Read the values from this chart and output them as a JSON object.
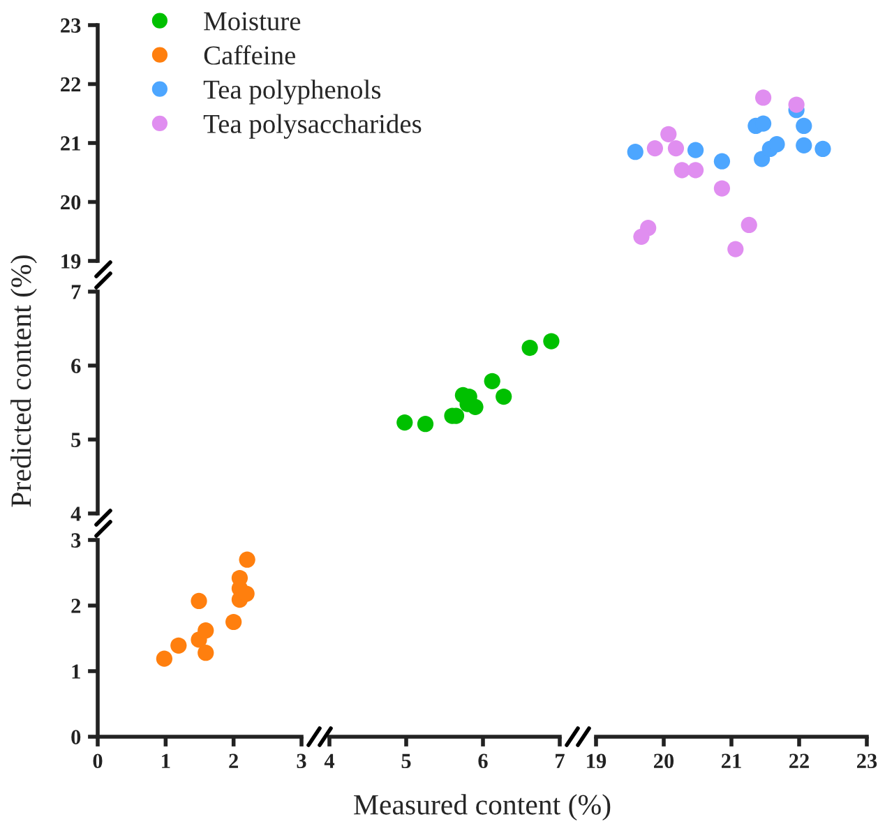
{
  "chart_data": [
    {
      "type": "scatter",
      "xlim": [
        0,
        3
      ],
      "ylim": [
        19,
        23
      ],
      "yticks": [
        19,
        20,
        21,
        22,
        23
      ],
      "tick_labels": "y"
    },
    {
      "type": "scatter",
      "xlim": [
        4,
        7
      ],
      "ylim": [
        19,
        23
      ],
      "tick_labels": false
    },
    {
      "type": "scatter",
      "xlim": [
        19,
        23
      ],
      "ylim": [
        19,
        23
      ],
      "tick_labels": false,
      "marker": "circle",
      "legend": "top left",
      "series": [
        {
          "name": "Tea polyphenols",
          "color": "#4da6ff",
          "x": [
            19.58,
            20.47,
            20.86,
            21.36,
            21.47,
            21.45,
            21.57,
            21.67,
            21.96,
            22.07,
            22.07,
            22.35
          ],
          "values": [
            20.85,
            20.88,
            20.69,
            21.29,
            21.33,
            20.73,
            20.9,
            20.98,
            21.56,
            21.29,
            20.96,
            20.9
          ]
        },
        {
          "name": "Tea polysaccharides",
          "color": "#e08ef0",
          "x": [
            21.47,
            21.96,
            20.07,
            19.87,
            20.18,
            20.27,
            20.47,
            20.86,
            19.77,
            19.67,
            21.26,
            21.06
          ],
          "values": [
            21.77,
            21.65,
            21.15,
            20.91,
            20.91,
            20.54,
            20.54,
            20.23,
            19.56,
            19.41,
            19.61,
            19.2
          ]
        }
      ]
    },
    {
      "type": "scatter",
      "ylabel": "Predicted content (%)",
      "xlim": [
        0,
        3
      ],
      "ylim": [
        4,
        7
      ],
      "yticks": [
        4,
        5,
        6,
        7
      ],
      "tick_labels": "y"
    },
    {
      "type": "scatter",
      "xlim": [
        4,
        7
      ],
      "ylim": [
        4,
        7
      ],
      "tick_labels": false,
      "marker": "circle",
      "legend": "top left",
      "series": [
        {
          "name": "Moisture",
          "color": "#00c000",
          "x": [
            4.98,
            5.25,
            5.6,
            5.65,
            5.74,
            5.82,
            5.8,
            5.9,
            6.12,
            6.27,
            6.61,
            6.89
          ],
          "values": [
            5.23,
            5.21,
            5.32,
            5.32,
            5.6,
            5.58,
            5.48,
            5.44,
            5.79,
            5.58,
            6.24,
            6.33
          ]
        }
      ]
    },
    {
      "type": "scatter",
      "xlim": [
        19,
        23
      ],
      "ylim": [
        4,
        7
      ],
      "tick_labels": false
    },
    {
      "type": "scatter",
      "xlim": [
        0,
        3
      ],
      "ylim": [
        0,
        3
      ],
      "xticks": [
        0,
        1,
        2,
        3
      ],
      "yticks": [
        0,
        1,
        2,
        3
      ],
      "marker": "circle",
      "legend": "top right",
      "series": [
        {
          "name": "Caffeine",
          "color": "#ff7f0e",
          "x": [
            0.98,
            1.19,
            1.49,
            1.49,
            1.59,
            1.59,
            2.0,
            2.09,
            2.09,
            2.09,
            2.19,
            2.2
          ],
          "values": [
            1.19,
            1.39,
            2.07,
            1.48,
            1.62,
            1.28,
            1.75,
            2.42,
            2.26,
            2.09,
            2.18,
            2.7
          ]
        }
      ]
    },
    {
      "type": "scatter",
      "xlabel": "Measured content (%)",
      "xlim": [
        4,
        7
      ],
      "ylim": [
        0,
        3
      ],
      "xticks": [
        4,
        5,
        6,
        7
      ],
      "tick_labels": "x"
    },
    {
      "type": "scatter",
      "xlim": [
        19,
        23
      ],
      "ylim": [
        0,
        3
      ],
      "xticks": [
        19,
        20,
        21,
        22,
        23
      ],
      "tick_labels": "x"
    }
  ]
}
